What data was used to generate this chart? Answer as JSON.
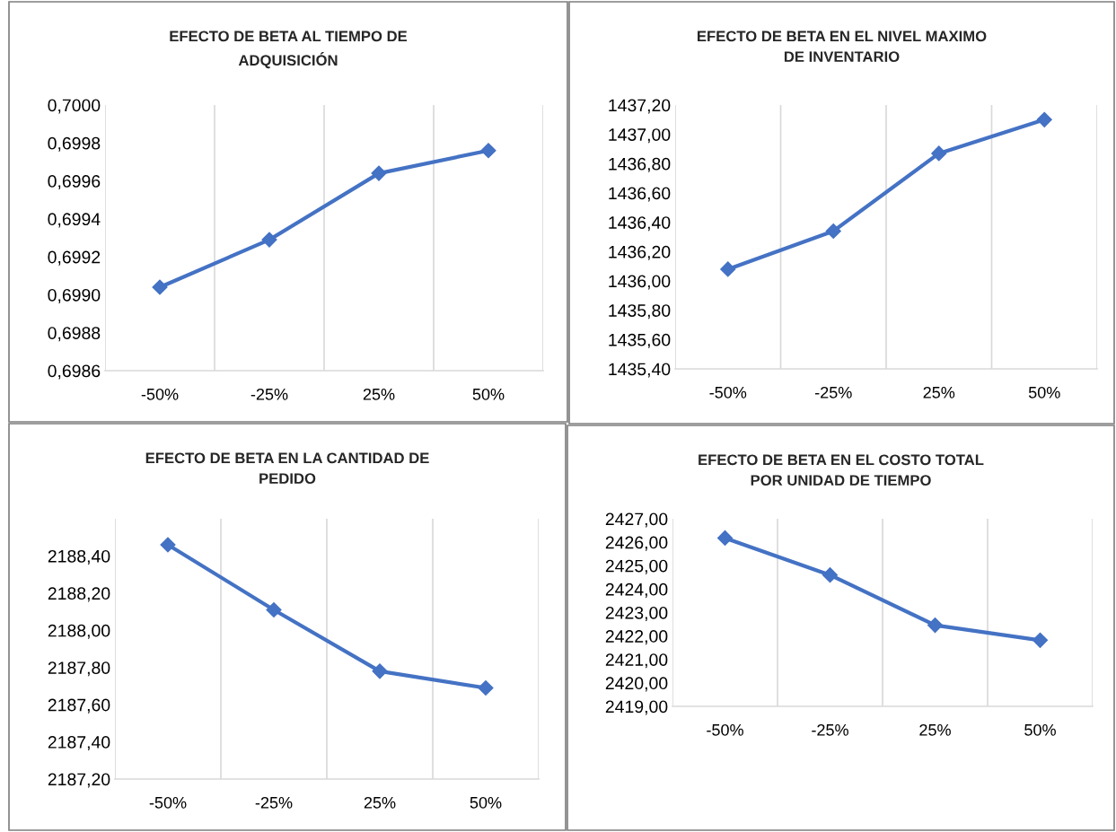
{
  "chart_data": [
    {
      "type": "line",
      "title": "EFECTO DE BETA AL TIEMPO DE\nADQUISICIÓN",
      "categories": [
        "-50%",
        "-25%",
        "25%",
        "50%"
      ],
      "series": [
        {
          "color": "#4472c4",
          "values": [
            0.69904,
            0.69929,
            0.69964,
            0.69976
          ]
        }
      ],
      "ylim": [
        0.6986,
        0.7
      ],
      "yticks": [
        {
          "value": 0.6986,
          "label": "0,6986"
        },
        {
          "value": 0.6988,
          "label": "0,6988"
        },
        {
          "value": 0.699,
          "label": "0,6990"
        },
        {
          "value": 0.6992,
          "label": "0,6992"
        },
        {
          "value": 0.6994,
          "label": "0,6994"
        },
        {
          "value": 0.6996,
          "label": "0,6996"
        },
        {
          "value": 0.6998,
          "label": "0,6998"
        },
        {
          "value": 0.7,
          "label": "0,7000"
        }
      ],
      "grid": "x",
      "marker": "diamond",
      "line_style": "solid"
    },
    {
      "type": "line",
      "title": "EFECTO DE BETA EN EL NIVEL MAXIMO\nDE INVENTARIO",
      "categories": [
        "-50%",
        "-25%",
        "25%",
        "50%"
      ],
      "series": [
        {
          "color": "#4472c4",
          "values": [
            1436.08,
            1436.34,
            1436.87,
            1437.1
          ]
        }
      ],
      "ylim": [
        1435.4,
        1437.2
      ],
      "yticks": [
        {
          "value": 1435.4,
          "label": "1435,40"
        },
        {
          "value": 1435.6,
          "label": "1435,60"
        },
        {
          "value": 1435.8,
          "label": "1435,80"
        },
        {
          "value": 1436.0,
          "label": "1436,00"
        },
        {
          "value": 1436.2,
          "label": "1436,20"
        },
        {
          "value": 1436.4,
          "label": "1436,40"
        },
        {
          "value": 1436.6,
          "label": "1436,60"
        },
        {
          "value": 1436.8,
          "label": "1436,80"
        },
        {
          "value": 1437.0,
          "label": "1437,00"
        },
        {
          "value": 1437.2,
          "label": "1437,20"
        }
      ],
      "grid": "x",
      "marker": "diamond",
      "line_style": "solid"
    },
    {
      "type": "line",
      "title": "EFECTO DE BETA EN LA CANTIDAD DE\nPEDIDO",
      "categories": [
        "-50%",
        "-25%",
        "25%",
        "50%"
      ],
      "series": [
        {
          "color": "#4472c4",
          "values": [
            2188.46,
            2188.11,
            2187.78,
            2187.69
          ]
        }
      ],
      "ylim": [
        2187.2,
        2188.6
      ],
      "yticks": [
        {
          "value": 2187.2,
          "label": "2187,20"
        },
        {
          "value": 2187.4,
          "label": "2187,40"
        },
        {
          "value": 2187.6,
          "label": "2187,60"
        },
        {
          "value": 2187.8,
          "label": "2187,80"
        },
        {
          "value": 2188.0,
          "label": "2188,00"
        },
        {
          "value": 2188.2,
          "label": "2188,20"
        },
        {
          "value": 2188.4,
          "label": "2188,40"
        }
      ],
      "grid": "x",
      "marker": "diamond",
      "line_style": "solid"
    },
    {
      "type": "line",
      "title": "EFECTO DE BETA EN EL COSTO TOTAL\nPOR UNIDAD DE TIEMPO",
      "categories": [
        "-50%",
        "-25%",
        "25%",
        "50%"
      ],
      "series": [
        {
          "color": "#4472c4",
          "values": [
            2426.18,
            2424.6,
            2422.46,
            2421.82
          ]
        }
      ],
      "ylim": [
        2419,
        2427
      ],
      "yticks": [
        {
          "value": 2419,
          "label": "2419,00"
        },
        {
          "value": 2420,
          "label": "2420,00"
        },
        {
          "value": 2421,
          "label": "2421,00"
        },
        {
          "value": 2422,
          "label": "2422,00"
        },
        {
          "value": 2423,
          "label": "2423,00"
        },
        {
          "value": 2424,
          "label": "2424,00"
        },
        {
          "value": 2425,
          "label": "2425,00"
        },
        {
          "value": 2426,
          "label": "2426,00"
        },
        {
          "value": 2427,
          "label": "2427,00"
        }
      ],
      "grid": "x",
      "marker": "diamond",
      "line_style": "solid"
    }
  ]
}
